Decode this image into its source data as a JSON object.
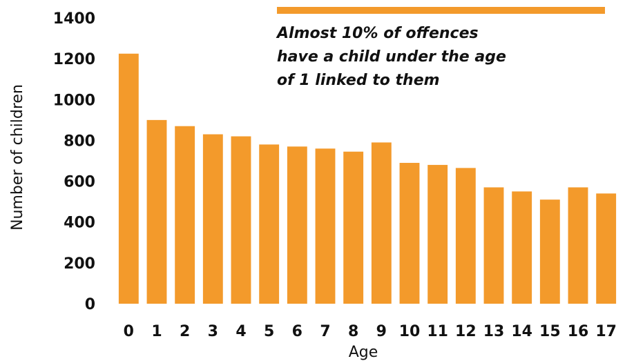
{
  "chart_data": {
    "type": "bar",
    "categories": [
      "0",
      "1",
      "2",
      "3",
      "4",
      "5",
      "6",
      "7",
      "8",
      "9",
      "10",
      "11",
      "12",
      "13",
      "14",
      "15",
      "16",
      "17"
    ],
    "values": [
      1225,
      900,
      870,
      830,
      820,
      780,
      770,
      760,
      745,
      790,
      690,
      680,
      665,
      570,
      550,
      510,
      570,
      540
    ],
    "xlabel": "Age",
    "ylabel": "Number of children",
    "ylim": [
      0,
      1400
    ],
    "yticks": [
      0,
      200,
      400,
      600,
      800,
      1000,
      1200,
      1400
    ],
    "grid": false,
    "bar_color": "#F39A2B",
    "annotation": {
      "lines": [
        "Almost 10% of offences",
        "have a child under the age",
        "of 1 linked to them"
      ],
      "accent_color": "#F39A2B"
    }
  }
}
